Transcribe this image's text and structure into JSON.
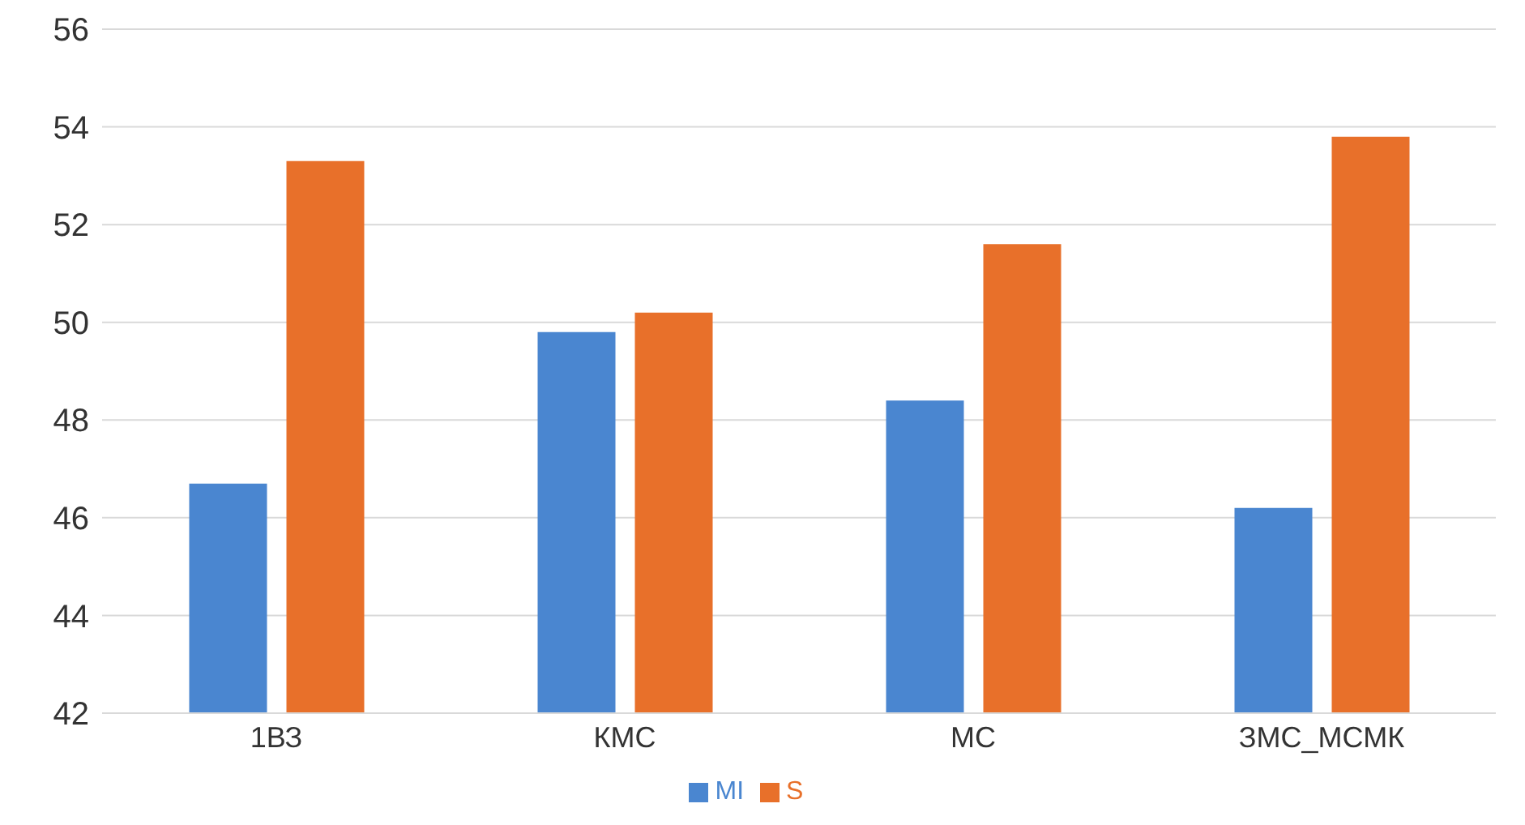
{
  "chart_data": {
    "type": "bar",
    "categories": [
      "1ВЗ",
      "КМС",
      "МС",
      "ЗМС_МСМК"
    ],
    "series": [
      {
        "name": "MI",
        "color": "#4a86d0",
        "values": [
          46.7,
          49.8,
          48.4,
          46.2
        ]
      },
      {
        "name": "S",
        "color": "#e8702a",
        "values": [
          53.3,
          50.2,
          51.6,
          53.8
        ]
      }
    ],
    "ylim": [
      42,
      56
    ],
    "yticks": [
      42,
      44,
      46,
      48,
      50,
      52,
      54,
      56
    ],
    "grid": "y",
    "legend": "bottom"
  }
}
